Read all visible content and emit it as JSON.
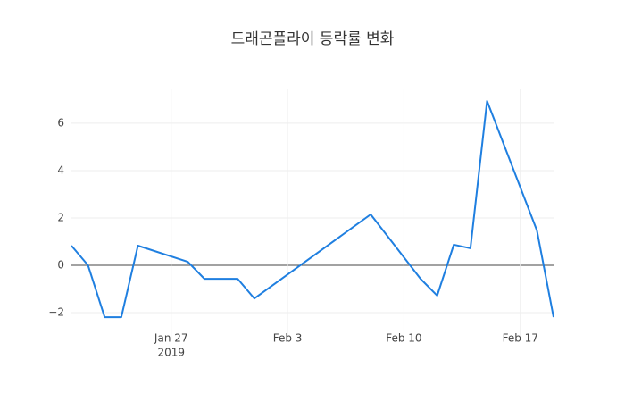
{
  "chart_data": {
    "type": "line",
    "title": "드래곤플라이 등락률 변화",
    "x": [
      "2019-01-21",
      "2019-01-22",
      "2019-01-23",
      "2019-01-24",
      "2019-01-25",
      "2019-01-28",
      "2019-01-29",
      "2019-01-31",
      "2019-02-01",
      "2019-02-08",
      "2019-02-11",
      "2019-02-12",
      "2019-02-13",
      "2019-02-14",
      "2019-02-15",
      "2019-02-18",
      "2019-02-19"
    ],
    "series": [
      {
        "color": "#1f7fe0",
        "values": [
          0.83,
          0,
          -2.19,
          -2.19,
          0.83,
          0.15,
          -0.57,
          -0.57,
          -1.4,
          2.15,
          -0.57,
          -1.28,
          0.87,
          0.72,
          6.94,
          1.47,
          -2.19
        ]
      }
    ],
    "xlim": [
      "2019-01-21",
      "2019-02-19"
    ],
    "xticks": [
      {
        "value": "2019-01-27",
        "label": "Jan 27"
      },
      {
        "value": "2019-02-03",
        "label": "Feb 3"
      },
      {
        "value": "2019-02-10",
        "label": "Feb 10"
      },
      {
        "value": "2019-02-17",
        "label": "Feb 17"
      }
    ],
    "x_tick_year_label": "2019",
    "ylim": [
      -3.13,
      7.43
    ],
    "yticks": [
      {
        "value": -2,
        "label": "−2"
      },
      0,
      2,
      4,
      6
    ],
    "grid": true
  }
}
